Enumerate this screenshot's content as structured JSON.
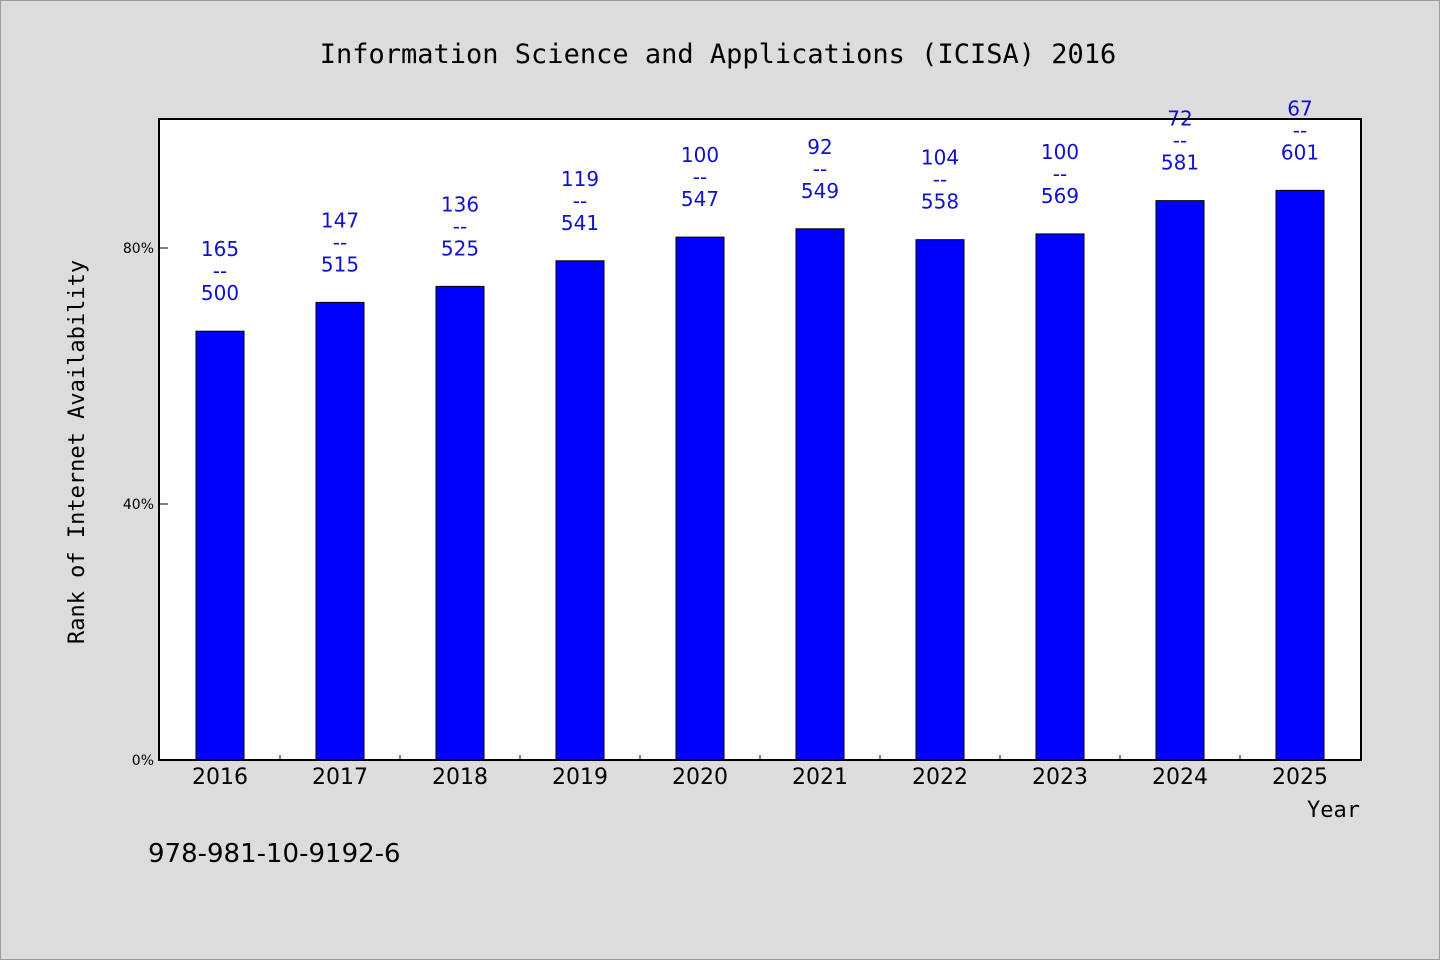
{
  "chart_data": {
    "type": "bar",
    "title": "Information Science and Applications (ICISA) 2016",
    "xlabel": "Year",
    "ylabel": "Rank of Internet Availability",
    "categories": [
      "2016",
      "2017",
      "2018",
      "2019",
      "2020",
      "2021",
      "2022",
      "2023",
      "2024",
      "2025"
    ],
    "values": [
      67,
      71.5,
      74,
      78,
      81.7,
      83,
      81.3,
      82.2,
      87.4,
      89
    ],
    "ylim": [
      0,
      100
    ],
    "yticks": [
      {
        "value": 0,
        "label": "0%"
      },
      {
        "value": 40,
        "label": "40%"
      },
      {
        "value": 80,
        "label": "80%"
      }
    ],
    "bar_labels": [
      {
        "top": "165",
        "sep": "--",
        "bottom": "500"
      },
      {
        "top": "147",
        "sep": "--",
        "bottom": "515"
      },
      {
        "top": "136",
        "sep": "--",
        "bottom": "525"
      },
      {
        "top": "119",
        "sep": "--",
        "bottom": "541"
      },
      {
        "top": "100",
        "sep": "--",
        "bottom": "547"
      },
      {
        "top": "92",
        "sep": "--",
        "bottom": "549"
      },
      {
        "top": "104",
        "sep": "--",
        "bottom": "558"
      },
      {
        "top": "100",
        "sep": "--",
        "bottom": "569"
      },
      {
        "top": "72",
        "sep": "--",
        "bottom": "581"
      },
      {
        "top": "67",
        "sep": "--",
        "bottom": "601"
      }
    ],
    "bar_color": "#0000ff",
    "label_color": "#1010d0",
    "grid": false,
    "legend": "none"
  },
  "footer_text": "978-981-10-9192-6"
}
